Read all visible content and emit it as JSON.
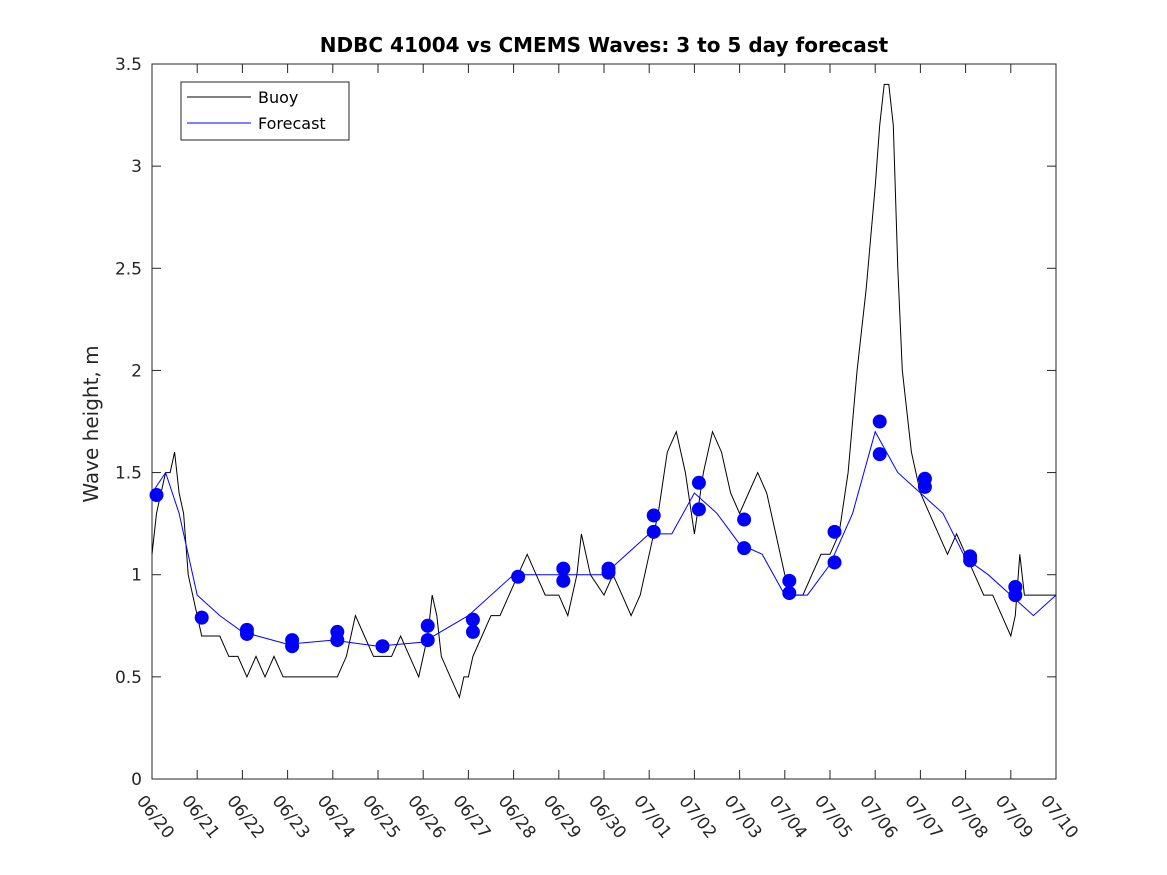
{
  "chart_data": {
    "type": "line",
    "title": "NDBC 41004 vs CMEMS Waves: 3 to 5 day forecast",
    "xlabel": "",
    "ylabel": "Wave height, m",
    "xlim": [
      "06/20",
      "07/10"
    ],
    "ylim": [
      0,
      3.5
    ],
    "yticks": [
      "0",
      "0.5",
      "1",
      "1.5",
      "2",
      "2.5",
      "3",
      "3.5"
    ],
    "xticks": [
      "06/20",
      "06/21",
      "06/22",
      "06/23",
      "06/24",
      "06/25",
      "06/26",
      "06/27",
      "06/28",
      "06/29",
      "06/30",
      "07/01",
      "07/02",
      "07/03",
      "07/04",
      "07/05",
      "07/06",
      "07/07",
      "07/08",
      "07/09",
      "07/10"
    ],
    "grid": false,
    "legend": {
      "placement": "top-left",
      "entries": [
        {
          "name": "Buoy",
          "color": "#000000"
        },
        {
          "name": "Forecast",
          "color": "#0000ff"
        }
      ]
    },
    "colors": {
      "buoy": "#000000",
      "forecast": "#0000ff",
      "marker": "#0000ff"
    },
    "series": [
      {
        "name": "Buoy",
        "x_unit": "days since 06/20",
        "points": [
          [
            0,
            1.1
          ],
          [
            0.1,
            1.3
          ],
          [
            0.2,
            1.4
          ],
          [
            0.3,
            1.5
          ],
          [
            0.4,
            1.5
          ],
          [
            0.5,
            1.6
          ],
          [
            0.6,
            1.4
          ],
          [
            0.7,
            1.3
          ],
          [
            0.8,
            1.0
          ],
          [
            0.9,
            0.9
          ],
          [
            1.0,
            0.8
          ],
          [
            1.1,
            0.7
          ],
          [
            1.3,
            0.7
          ],
          [
            1.5,
            0.7
          ],
          [
            1.7,
            0.6
          ],
          [
            1.9,
            0.6
          ],
          [
            2.1,
            0.5
          ],
          [
            2.3,
            0.6
          ],
          [
            2.5,
            0.5
          ],
          [
            2.7,
            0.6
          ],
          [
            2.9,
            0.5
          ],
          [
            3.1,
            0.5
          ],
          [
            3.3,
            0.5
          ],
          [
            3.5,
            0.5
          ],
          [
            3.7,
            0.5
          ],
          [
            3.9,
            0.5
          ],
          [
            4.1,
            0.5
          ],
          [
            4.3,
            0.6
          ],
          [
            4.5,
            0.8
          ],
          [
            4.7,
            0.7
          ],
          [
            4.9,
            0.6
          ],
          [
            5.1,
            0.6
          ],
          [
            5.3,
            0.6
          ],
          [
            5.5,
            0.7
          ],
          [
            5.7,
            0.6
          ],
          [
            5.9,
            0.5
          ],
          [
            6.1,
            0.7
          ],
          [
            6.2,
            0.9
          ],
          [
            6.3,
            0.8
          ],
          [
            6.4,
            0.6
          ],
          [
            6.6,
            0.5
          ],
          [
            6.8,
            0.4
          ],
          [
            6.9,
            0.5
          ],
          [
            7.0,
            0.5
          ],
          [
            7.1,
            0.6
          ],
          [
            7.3,
            0.7
          ],
          [
            7.5,
            0.8
          ],
          [
            7.7,
            0.8
          ],
          [
            7.9,
            0.9
          ],
          [
            8.1,
            1.0
          ],
          [
            8.3,
            1.1
          ],
          [
            8.5,
            1.0
          ],
          [
            8.7,
            0.9
          ],
          [
            9.0,
            0.9
          ],
          [
            9.2,
            0.8
          ],
          [
            9.4,
            1.0
          ],
          [
            9.5,
            1.2
          ],
          [
            9.7,
            1.0
          ],
          [
            10.0,
            0.9
          ],
          [
            10.2,
            1.0
          ],
          [
            10.4,
            0.9
          ],
          [
            10.6,
            0.8
          ],
          [
            10.8,
            0.9
          ],
          [
            11.0,
            1.1
          ],
          [
            11.2,
            1.3
          ],
          [
            11.4,
            1.6
          ],
          [
            11.6,
            1.7
          ],
          [
            11.8,
            1.5
          ],
          [
            12.0,
            1.2
          ],
          [
            12.2,
            1.5
          ],
          [
            12.4,
            1.7
          ],
          [
            12.6,
            1.6
          ],
          [
            12.8,
            1.4
          ],
          [
            13.0,
            1.3
          ],
          [
            13.2,
            1.4
          ],
          [
            13.4,
            1.5
          ],
          [
            13.6,
            1.4
          ],
          [
            13.8,
            1.2
          ],
          [
            14.0,
            1.0
          ],
          [
            14.2,
            0.9
          ],
          [
            14.4,
            0.9
          ],
          [
            14.6,
            1.0
          ],
          [
            14.8,
            1.1
          ],
          [
            15.0,
            1.1
          ],
          [
            15.2,
            1.2
          ],
          [
            15.4,
            1.5
          ],
          [
            15.6,
            2.0
          ],
          [
            15.8,
            2.4
          ],
          [
            16.0,
            2.9
          ],
          [
            16.1,
            3.2
          ],
          [
            16.2,
            3.4
          ],
          [
            16.3,
            3.4
          ],
          [
            16.4,
            3.2
          ],
          [
            16.5,
            2.5
          ],
          [
            16.6,
            2.0
          ],
          [
            16.8,
            1.6
          ],
          [
            17.0,
            1.4
          ],
          [
            17.2,
            1.3
          ],
          [
            17.4,
            1.2
          ],
          [
            17.6,
            1.1
          ],
          [
            17.8,
            1.2
          ],
          [
            18.0,
            1.1
          ],
          [
            18.2,
            1.0
          ],
          [
            18.4,
            0.9
          ],
          [
            18.6,
            0.9
          ],
          [
            18.8,
            0.8
          ],
          [
            19.0,
            0.7
          ],
          [
            19.1,
            0.8
          ],
          [
            19.2,
            1.1
          ],
          [
            19.3,
            0.9
          ],
          [
            19.5,
            0.9
          ],
          [
            19.7,
            0.9
          ],
          [
            20.0,
            0.9
          ]
        ]
      },
      {
        "name": "Forecast",
        "x_unit": "days since 06/20",
        "points": [
          [
            0,
            1.4
          ],
          [
            0.3,
            1.5
          ],
          [
            0.6,
            1.3
          ],
          [
            1.0,
            0.9
          ],
          [
            1.5,
            0.8
          ],
          [
            2.0,
            0.72
          ],
          [
            3.0,
            0.66
          ],
          [
            4.0,
            0.68
          ],
          [
            5.0,
            0.65
          ],
          [
            6.0,
            0.67
          ],
          [
            7.0,
            0.8
          ],
          [
            8.0,
            1.0
          ],
          [
            9.0,
            1.0
          ],
          [
            10.0,
            1.0
          ],
          [
            11.0,
            1.2
          ],
          [
            11.5,
            1.2
          ],
          [
            12.0,
            1.4
          ],
          [
            12.5,
            1.3
          ],
          [
            13.0,
            1.15
          ],
          [
            13.5,
            1.1
          ],
          [
            14.0,
            0.9
          ],
          [
            14.5,
            0.9
          ],
          [
            15.0,
            1.05
          ],
          [
            15.5,
            1.3
          ],
          [
            16.0,
            1.7
          ],
          [
            16.5,
            1.5
          ],
          [
            17.0,
            1.4
          ],
          [
            17.5,
            1.3
          ],
          [
            18.0,
            1.08
          ],
          [
            18.5,
            1.0
          ],
          [
            19.0,
            0.9
          ],
          [
            19.5,
            0.8
          ],
          [
            20.0,
            0.9
          ]
        ]
      }
    ],
    "forecast_markers": {
      "name": "Forecast",
      "points": [
        [
          0.1,
          1.39
        ],
        [
          1.1,
          0.79
        ],
        [
          2.1,
          0.73
        ],
        [
          2.1,
          0.71
        ],
        [
          3.1,
          0.68
        ],
        [
          3.1,
          0.65
        ],
        [
          4.1,
          0.72
        ],
        [
          4.1,
          0.68
        ],
        [
          5.1,
          0.65
        ],
        [
          6.1,
          0.75
        ],
        [
          6.1,
          0.68
        ],
        [
          7.1,
          0.78
        ],
        [
          7.1,
          0.72
        ],
        [
          8.1,
          0.99
        ],
        [
          9.1,
          1.03
        ],
        [
          9.1,
          0.97
        ],
        [
          10.1,
          1.03
        ],
        [
          10.1,
          1.01
        ],
        [
          11.1,
          1.29
        ],
        [
          11.1,
          1.21
        ],
        [
          12.1,
          1.45
        ],
        [
          12.1,
          1.32
        ],
        [
          13.1,
          1.27
        ],
        [
          13.1,
          1.13
        ],
        [
          14.1,
          0.97
        ],
        [
          14.1,
          0.91
        ],
        [
          15.1,
          1.21
        ],
        [
          15.1,
          1.06
        ],
        [
          16.1,
          1.75
        ],
        [
          16.1,
          1.59
        ],
        [
          17.1,
          1.47
        ],
        [
          17.1,
          1.43
        ],
        [
          18.1,
          1.09
        ],
        [
          18.1,
          1.07
        ],
        [
          19.1,
          0.94
        ],
        [
          19.1,
          0.9
        ]
      ]
    }
  }
}
